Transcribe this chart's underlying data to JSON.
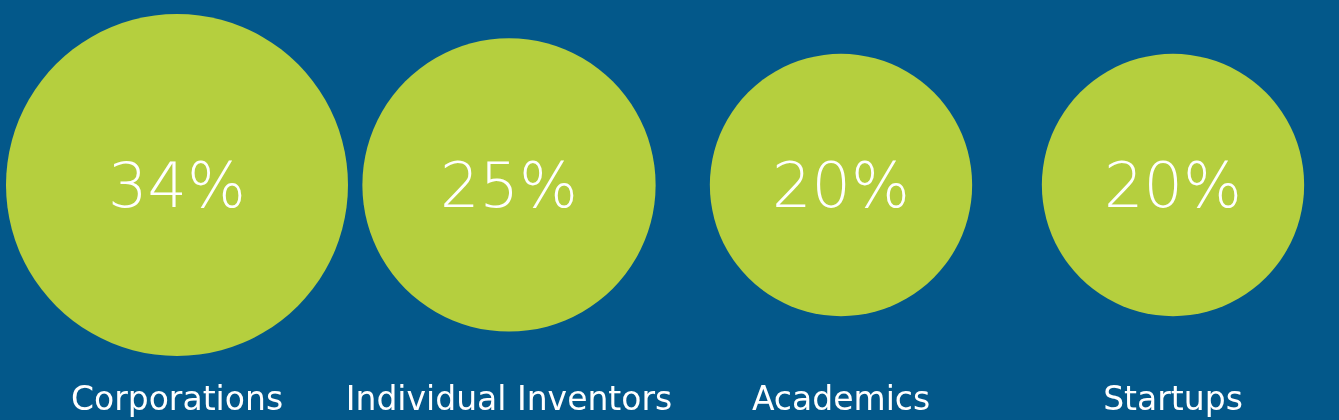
{
  "chart_data": {
    "type": "other",
    "categories": [
      "Corporations",
      "Individual Inventors",
      "Academics",
      "Startups"
    ],
    "values": [
      34,
      25,
      20,
      20
    ],
    "value_labels": [
      "34%",
      "25%",
      "20%",
      "20%"
    ],
    "color": "#b5cf3e"
  }
}
